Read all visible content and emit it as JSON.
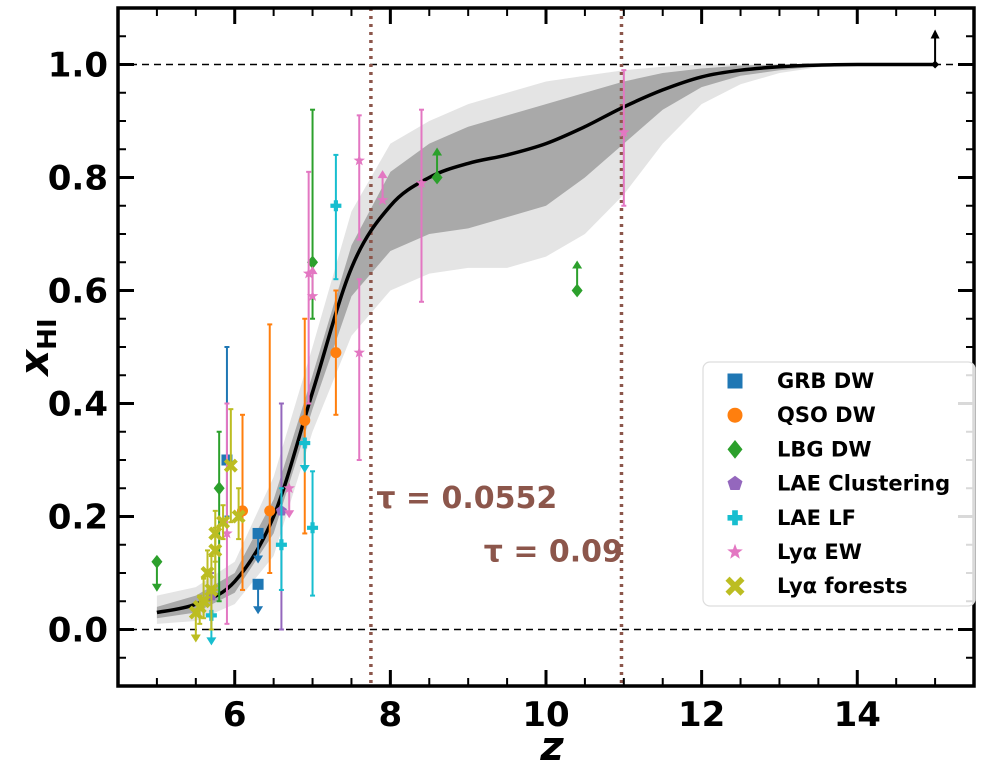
{
  "chart_data": {
    "type": "scatter",
    "title": "",
    "xlabel": "z",
    "ylabel": "x",
    "ylabel_sub": "HI",
    "xlim": [
      4.5,
      15.5
    ],
    "ylim": [
      -0.1,
      1.1
    ],
    "xticks": [
      6,
      8,
      10,
      12,
      14
    ],
    "xtick_labels": [
      "6",
      "8",
      "10",
      "12",
      "14"
    ],
    "yticks": [
      0.0,
      0.2,
      0.4,
      0.6,
      0.8,
      1.0
    ],
    "ytick_labels": [
      "0.0",
      "0.2",
      "0.4",
      "0.6",
      "0.8",
      "1.0"
    ],
    "hlines": [
      0.0,
      1.0
    ],
    "vlines": [
      {
        "x": 7.75,
        "label": "τ = 0.0552",
        "label_x": 7.82,
        "label_y": 0.215,
        "color": "#8c564b"
      },
      {
        "x": 10.97,
        "label": "τ = 0.09",
        "label_x": 9.2,
        "label_y": 0.12,
        "color": "#8c564b"
      }
    ],
    "median_curve": {
      "x": [
        5.0,
        5.5,
        6.0,
        6.5,
        7.0,
        7.5,
        8.0,
        8.5,
        9.0,
        9.5,
        10.0,
        10.5,
        11.0,
        11.5,
        12.0,
        12.5,
        13.0,
        13.5,
        14.0,
        14.5,
        15.0
      ],
      "y": [
        0.03,
        0.045,
        0.085,
        0.2,
        0.42,
        0.64,
        0.75,
        0.8,
        0.825,
        0.84,
        0.86,
        0.89,
        0.925,
        0.955,
        0.978,
        0.99,
        0.996,
        0.999,
        1.0,
        1.0,
        1.0
      ]
    },
    "band_68": {
      "x": [
        5.0,
        5.5,
        6.0,
        6.5,
        7.0,
        7.5,
        8.0,
        8.5,
        9.0,
        9.5,
        10.0,
        10.5,
        11.0,
        11.5,
        12.0,
        12.5,
        13.0,
        13.5,
        14.0,
        14.5,
        15.0
      ],
      "lower": [
        0.02,
        0.03,
        0.065,
        0.17,
        0.39,
        0.59,
        0.67,
        0.7,
        0.71,
        0.73,
        0.75,
        0.8,
        0.86,
        0.92,
        0.96,
        0.98,
        0.99,
        0.997,
        1.0,
        1.0,
        1.0
      ],
      "upper": [
        0.04,
        0.06,
        0.1,
        0.23,
        0.45,
        0.68,
        0.81,
        0.86,
        0.89,
        0.91,
        0.93,
        0.95,
        0.97,
        0.985,
        0.993,
        0.998,
        1.0,
        1.0,
        1.0,
        1.0,
        1.0
      ]
    },
    "band_95": {
      "x": [
        5.0,
        5.5,
        6.0,
        6.5,
        7.0,
        7.5,
        8.0,
        8.5,
        9.0,
        9.5,
        10.0,
        10.5,
        11.0,
        11.5,
        12.0,
        12.5,
        13.0,
        13.5,
        14.0,
        14.5,
        15.0
      ],
      "lower": [
        0.01,
        0.015,
        0.045,
        0.13,
        0.35,
        0.52,
        0.6,
        0.63,
        0.64,
        0.64,
        0.66,
        0.7,
        0.77,
        0.86,
        0.93,
        0.965,
        0.985,
        0.995,
        1.0,
        1.0,
        1.0
      ],
      "upper": [
        0.06,
        0.075,
        0.12,
        0.27,
        0.5,
        0.74,
        0.86,
        0.9,
        0.93,
        0.95,
        0.97,
        0.98,
        0.99,
        0.996,
        1.0,
        1.0,
        1.0,
        1.0,
        1.0,
        1.0,
        1.0
      ]
    },
    "upper_limit_marker": {
      "x": 15.0,
      "y": 1.0
    },
    "series": [
      {
        "name": "GRB DW",
        "marker": "square",
        "color": "#1f77b4",
        "points": [
          {
            "x": 5.9,
            "y": 0.3,
            "lo": 0.2,
            "hi": 0.5
          },
          {
            "x": 6.3,
            "y": 0.17,
            "limit": "upper"
          },
          {
            "x": 6.3,
            "y": 0.08,
            "limit": "upper"
          }
        ]
      },
      {
        "name": "QSO DW",
        "marker": "circle",
        "color": "#ff7f0e",
        "points": [
          {
            "x": 6.1,
            "y": 0.21,
            "lo": 0.07,
            "hi": 0.38
          },
          {
            "x": 6.45,
            "y": 0.21,
            "lo": 0.1,
            "hi": 0.54
          },
          {
            "x": 6.9,
            "y": 0.37,
            "lo": 0.17,
            "hi": 0.55
          },
          {
            "x": 7.3,
            "y": 0.49,
            "lo": 0.38,
            "hi": 0.6
          }
        ]
      },
      {
        "name": "LBG DW",
        "marker": "diamond",
        "color": "#2ca02c",
        "points": [
          {
            "x": 5.0,
            "y": 0.12,
            "limit": "upper"
          },
          {
            "x": 5.8,
            "y": 0.25,
            "lo": 0.05,
            "hi": 0.35
          },
          {
            "x": 7.0,
            "y": 0.65,
            "lo": 0.55,
            "hi": 0.92
          },
          {
            "x": 8.6,
            "y": 0.8,
            "limit": "lower"
          },
          {
            "x": 10.4,
            "y": 0.6,
            "limit": "lower"
          }
        ]
      },
      {
        "name": "LAE Clustering",
        "marker": "pentagon",
        "color": "#9467bd",
        "points": [
          {
            "x": 5.7,
            "y": 0.06,
            "lo": 0.0,
            "hi": 0.1
          },
          {
            "x": 6.6,
            "y": 0.21,
            "lo": 0.0,
            "hi": 0.4
          }
        ]
      },
      {
        "name": "LAE LF",
        "marker": "plus",
        "color": "#17becf",
        "points": [
          {
            "x": 5.7,
            "y": 0.025,
            "limit": "upper"
          },
          {
            "x": 6.6,
            "y": 0.15,
            "lo": 0.07,
            "hi": 0.25
          },
          {
            "x": 6.9,
            "y": 0.33,
            "limit": "upper"
          },
          {
            "x": 7.0,
            "y": 0.18,
            "lo": 0.06,
            "hi": 0.28
          },
          {
            "x": 7.3,
            "y": 0.75,
            "lo": 0.62,
            "hi": 0.84
          }
        ]
      },
      {
        "name": "Lyα EW",
        "marker": "star",
        "color": "#e377c2",
        "points": [
          {
            "x": 5.9,
            "y": 0.17,
            "lo": 0.01,
            "hi": 0.4
          },
          {
            "x": 6.7,
            "y": 0.25,
            "limit": "upper"
          },
          {
            "x": 6.95,
            "y": 0.63,
            "lo": 0.4,
            "hi": 0.81
          },
          {
            "x": 7.0,
            "y": 0.59,
            "limit": "lower"
          },
          {
            "x": 7.6,
            "y": 0.83,
            "lo": 0.69,
            "hi": 0.91
          },
          {
            "x": 7.6,
            "y": 0.49,
            "lo": 0.3,
            "hi": 0.62
          },
          {
            "x": 7.9,
            "y": 0.76,
            "limit": "lower"
          },
          {
            "x": 8.4,
            "y": 0.79,
            "lo": 0.58,
            "hi": 0.92
          },
          {
            "x": 11.0,
            "y": 0.88,
            "lo": 0.75,
            "hi": 0.99
          }
        ]
      },
      {
        "name": "Lyα forests",
        "marker": "x",
        "color": "#bcbd22",
        "points": [
          {
            "x": 5.5,
            "y": 0.03,
            "limit": "upper"
          },
          {
            "x": 5.55,
            "y": 0.04,
            "lo": 0.01,
            "hi": 0.06
          },
          {
            "x": 5.6,
            "y": 0.05,
            "lo": 0.02,
            "hi": 0.09
          },
          {
            "x": 5.65,
            "y": 0.1,
            "lo": 0.05,
            "hi": 0.14
          },
          {
            "x": 5.75,
            "y": 0.17,
            "lo": 0.12,
            "hi": 0.21
          },
          {
            "x": 5.85,
            "y": 0.19,
            "lo": 0.16,
            "hi": 0.22
          },
          {
            "x": 5.95,
            "y": 0.29,
            "lo": 0.19,
            "hi": 0.39
          },
          {
            "x": 6.05,
            "y": 0.2,
            "lo": 0.16,
            "hi": 0.25
          },
          {
            "x": 5.75,
            "y": 0.14,
            "lo": 0.07,
            "hi": 0.18
          },
          {
            "x": 5.7,
            "y": 0.07,
            "lo": 0.0,
            "hi": 0.13
          }
        ]
      }
    ],
    "legend": {
      "placement": "right",
      "entries": [
        "GRB DW",
        "QSO DW",
        "LBG DW",
        "LAE Clustering",
        "LAE LF",
        "Lyα EW",
        "Lyα forests"
      ]
    }
  }
}
